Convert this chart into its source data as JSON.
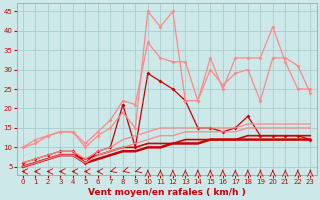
{
  "xlabel": "Vent moyen/en rafales ( km/h )",
  "xlim": [
    -0.5,
    23.5
  ],
  "ylim": [
    3,
    47
  ],
  "yticks": [
    5,
    10,
    15,
    20,
    25,
    30,
    35,
    40,
    45
  ],
  "xticks": [
    0,
    1,
    2,
    3,
    4,
    5,
    6,
    7,
    8,
    9,
    10,
    11,
    12,
    13,
    14,
    15,
    16,
    17,
    18,
    19,
    20,
    21,
    22,
    23
  ],
  "bg_color": "#cce8e8",
  "grid_color": "#aacccc",
  "series": [
    {
      "x": [
        0,
        1,
        2,
        3,
        4,
        5,
        6,
        7,
        8,
        9,
        10,
        11,
        12,
        13,
        14,
        15,
        16,
        17,
        18,
        19,
        20,
        21,
        22,
        23
      ],
      "y": [
        6,
        7,
        8,
        9,
        9,
        6,
        9,
        10,
        21,
        10,
        29,
        27,
        25,
        22,
        15,
        15,
        14,
        15,
        18,
        13,
        13,
        13,
        13,
        12
      ],
      "color": "#cc0000",
      "lw": 0.9,
      "marker": "D",
      "ms": 2.0
    },
    {
      "x": [
        0,
        1,
        2,
        3,
        4,
        5,
        6,
        7,
        8,
        9,
        10,
        11,
        12,
        13,
        14,
        15,
        16,
        17,
        18,
        19,
        20,
        21,
        22,
        23
      ],
      "y": [
        5,
        6,
        7,
        8,
        8,
        6,
        7,
        8,
        9,
        9,
        10,
        10,
        11,
        11,
        11,
        12,
        12,
        12,
        12,
        12,
        12,
        12,
        12,
        12
      ],
      "color": "#cc0000",
      "lw": 1.8,
      "marker": null,
      "ms": 0
    },
    {
      "x": [
        0,
        1,
        2,
        3,
        4,
        5,
        6,
        7,
        8,
        9,
        10,
        11,
        12,
        13,
        14,
        15,
        16,
        17,
        18,
        19,
        20,
        21,
        22,
        23
      ],
      "y": [
        5,
        6,
        7,
        8,
        8,
        7,
        8,
        9,
        10,
        10,
        11,
        11,
        11,
        12,
        12,
        12,
        12,
        12,
        13,
        13,
        13,
        13,
        13,
        13
      ],
      "color": "#cc0000",
      "lw": 1.2,
      "marker": null,
      "ms": 0
    },
    {
      "x": [
        0,
        1,
        2,
        3,
        4,
        5,
        6,
        7,
        8,
        9,
        10,
        11,
        12,
        13,
        14,
        15,
        16,
        17,
        18,
        19,
        20,
        21,
        22,
        23
      ],
      "y": [
        10,
        11,
        13,
        14,
        14,
        10,
        13,
        15,
        19,
        15,
        45,
        41,
        45,
        22,
        22,
        33,
        25,
        33,
        33,
        33,
        41,
        32,
        25,
        25
      ],
      "color": "#ff8888",
      "lw": 0.9,
      "marker": "D",
      "ms": 2.0
    },
    {
      "x": [
        0,
        1,
        2,
        3,
        4,
        5,
        6,
        7,
        8,
        9,
        10,
        11,
        12,
        13,
        14,
        15,
        16,
        17,
        18,
        19,
        20,
        21,
        22,
        23
      ],
      "y": [
        10,
        12,
        13,
        14,
        14,
        11,
        14,
        17,
        22,
        21,
        37,
        33,
        32,
        32,
        22,
        30,
        26,
        29,
        30,
        22,
        33,
        33,
        31,
        24
      ],
      "color": "#ff8888",
      "lw": 0.9,
      "marker": "D",
      "ms": 2.0
    },
    {
      "x": [
        0,
        1,
        2,
        3,
        4,
        5,
        6,
        7,
        8,
        9,
        10,
        11,
        12,
        13,
        14,
        15,
        16,
        17,
        18,
        19,
        20,
        21,
        22,
        23
      ],
      "y": [
        6,
        7,
        8,
        9,
        9,
        7,
        9,
        10,
        12,
        13,
        14,
        15,
        15,
        15,
        15,
        15,
        15,
        15,
        16,
        16,
        16,
        16,
        16,
        16
      ],
      "color": "#ff8888",
      "lw": 0.9,
      "marker": null,
      "ms": 0
    },
    {
      "x": [
        0,
        1,
        2,
        3,
        4,
        5,
        6,
        7,
        8,
        9,
        10,
        11,
        12,
        13,
        14,
        15,
        16,
        17,
        18,
        19,
        20,
        21,
        22,
        23
      ],
      "y": [
        5,
        6,
        7,
        8,
        8,
        6,
        8,
        9,
        10,
        11,
        12,
        13,
        13,
        14,
        14,
        14,
        14,
        14,
        15,
        15,
        15,
        15,
        15,
        15
      ],
      "color": "#ff8888",
      "lw": 0.9,
      "marker": null,
      "ms": 0
    }
  ],
  "arrow_color": "#cc0000",
  "xlabel_color": "#cc0000",
  "xlabel_fontsize": 6.5,
  "tick_fontsize": 5.0
}
